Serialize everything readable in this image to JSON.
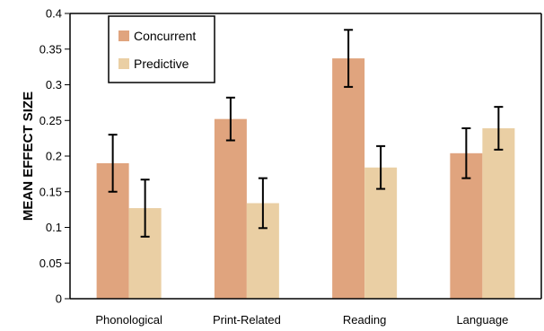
{
  "chart_data": {
    "type": "bar",
    "categories": [
      "Phonological",
      "Print-Related",
      "Reading",
      "Language"
    ],
    "series": [
      {
        "name": "Concurrent",
        "color": "#E0A47E",
        "values": [
          0.19,
          0.252,
          0.337,
          0.204
        ],
        "error": [
          0.04,
          0.03,
          0.04,
          0.035
        ]
      },
      {
        "name": "Predictive",
        "color": "#EACFA4",
        "values": [
          0.127,
          0.134,
          0.184,
          0.239
        ],
        "error": [
          0.04,
          0.035,
          0.03,
          0.03
        ]
      }
    ],
    "title": "",
    "xlabel": "",
    "ylabel": "MEAN EFFECT SIZE",
    "ylim": [
      0,
      0.4
    ],
    "yticks": [
      "0",
      "0.05",
      "0.1",
      "0.15",
      "0.2",
      "0.25",
      "0.3",
      "0.35",
      "0.4"
    ],
    "grid": false,
    "legend_position": "top-left"
  }
}
